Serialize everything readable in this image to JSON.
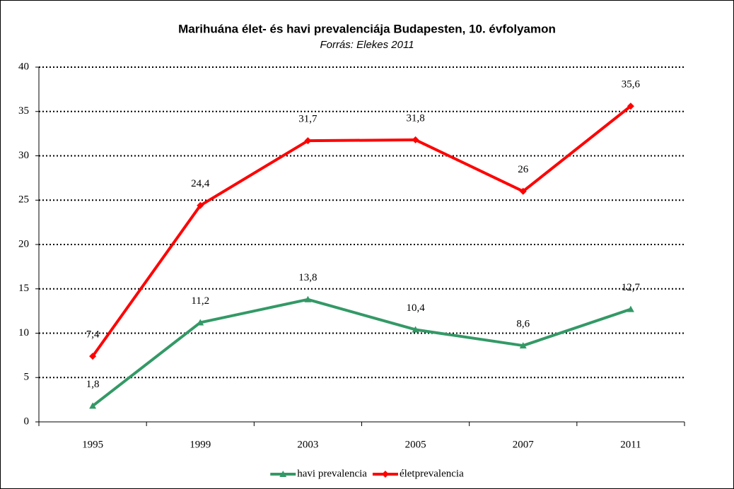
{
  "chart_data": {
    "type": "line",
    "title": "Marihuána élet- és havi prevalenciája Budapesten, 10. évfolyamon",
    "subtitle": "Forrás: Elekes 2011",
    "categories": [
      "1995",
      "1999",
      "2003",
      "2005",
      "2007",
      "2011"
    ],
    "series": [
      {
        "name": "havi prevalencia",
        "color": "#339966",
        "marker": "triangle",
        "values": [
          1.8,
          11.2,
          13.8,
          10.4,
          8.6,
          12.7
        ],
        "value_labels": [
          "1,8",
          "11,2",
          "13,8",
          "10,4",
          "8,6",
          "12,7"
        ]
      },
      {
        "name": "életprevalencia",
        "color": "#ff0000",
        "marker": "diamond",
        "values": [
          7.4,
          24.4,
          31.7,
          31.8,
          26,
          35.6
        ],
        "value_labels": [
          "7,4",
          "24,4",
          "31,7",
          "31,8",
          "26",
          "35,6"
        ]
      }
    ],
    "ylim": [
      0,
      40
    ],
    "yticks": [
      0,
      5,
      10,
      15,
      20,
      25,
      30,
      35,
      40
    ],
    "grid": true,
    "legend": "bottom"
  }
}
